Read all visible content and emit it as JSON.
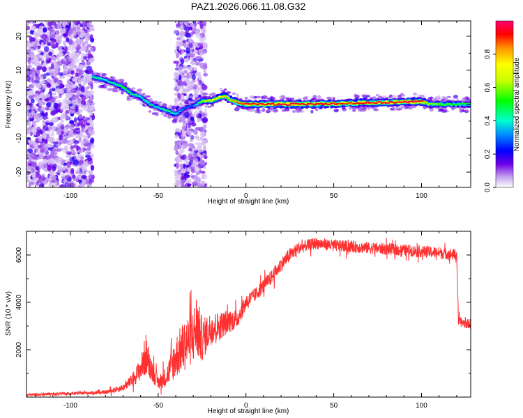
{
  "figure_title": "PAZ1.2026.066.11.08.G32",
  "chart_data": [
    {
      "id": "spectrogram",
      "type": "heatmap",
      "title": "PAZ1.2026.066.11.08.G32",
      "xlabel": "Height of straight line (km)",
      "ylabel": "Frequency (Hz)",
      "xlim": [
        -125,
        128
      ],
      "ylim": [
        -24.5,
        24.5
      ],
      "xticks": [
        -100,
        -50,
        0,
        50,
        100
      ],
      "yticks": [
        -20,
        -10,
        0,
        10,
        20
      ],
      "colorbar": {
        "label": "Normalized spectral amplitude",
        "range": [
          0,
          1
        ],
        "ticks": [
          "0.0",
          "0.2",
          "0.4",
          "0.6",
          "0.8"
        ],
        "tick_values": [
          0,
          0.2,
          0.4,
          0.6,
          0.8
        ]
      },
      "noise_bands_km": [
        [
          -125,
          -87
        ],
        [
          -40,
          -23
        ]
      ],
      "ridge": {
        "x": [
          -87,
          -80,
          -75,
          -70,
          -65,
          -60,
          -55,
          -50,
          -45,
          -40,
          -35,
          -30,
          -25,
          -20,
          -15,
          -12,
          -10,
          -5,
          0,
          20,
          40,
          60,
          80,
          100,
          105,
          110,
          128
        ],
        "y": [
          8,
          7,
          6,
          5,
          3,
          2,
          0,
          -1,
          -2,
          -3,
          -1,
          -0.5,
          1,
          1,
          2,
          2.5,
          1.5,
          0.5,
          0,
          0,
          0,
          0.3,
          0.5,
          0.8,
          0,
          0,
          0
        ],
        "amplitude": [
          0.45,
          0.4,
          0.45,
          0.5,
          0.45,
          0.4,
          0.45,
          0.4,
          0.45,
          0.4,
          0.3,
          0.3,
          0.6,
          0.7,
          0.75,
          0.8,
          0.8,
          0.85,
          0.9,
          0.95,
          0.95,
          0.9,
          0.95,
          0.95,
          0.6,
          0.55,
          0.5
        ]
      }
    },
    {
      "id": "snr",
      "type": "line",
      "title": "",
      "xlabel": "Height of straight line (km)",
      "ylabel": "SNR (10 * v/v)",
      "xlim": [
        -125,
        128
      ],
      "ylim": [
        0,
        7000
      ],
      "xticks": [
        -100,
        -50,
        0,
        50,
        100
      ],
      "yticks": [
        2000,
        4000,
        6000
      ],
      "series": [
        {
          "name": "SNR",
          "color": "#ff3030",
          "x": [
            -125,
            -100,
            -80,
            -70,
            -65,
            -60,
            -57,
            -55,
            -52,
            -50,
            -45,
            -40,
            -35,
            -30,
            -28,
            -25,
            -20,
            -15,
            -10,
            -5,
            0,
            5,
            10,
            15,
            20,
            25,
            30,
            35,
            40,
            45,
            50,
            60,
            70,
            80,
            90,
            100,
            110,
            115,
            120,
            120.5,
            121,
            125,
            128
          ],
          "y": [
            100,
            150,
            200,
            400,
            700,
            1200,
            1800,
            1400,
            900,
            600,
            900,
            1700,
            2200,
            2600,
            3000,
            2400,
            2900,
            3000,
            3200,
            3300,
            4000,
            4300,
            4700,
            5100,
            5600,
            6000,
            6300,
            6400,
            6500,
            6450,
            6400,
            6350,
            6300,
            6250,
            6200,
            6150,
            6100,
            6050,
            6000,
            4800,
            3200,
            3100,
            3100
          ],
          "noise_amplitude": [
            60,
            60,
            80,
            150,
            250,
            500,
            900,
            600,
            400,
            300,
            450,
            900,
            1100,
            1200,
            1500,
            900,
            700,
            600,
            500,
            400,
            350,
            300,
            300,
            300,
            300,
            300,
            250,
            250,
            250,
            250,
            250,
            250,
            250,
            250,
            250,
            250,
            250,
            250,
            250,
            200,
            200,
            200,
            200
          ]
        }
      ]
    }
  ]
}
